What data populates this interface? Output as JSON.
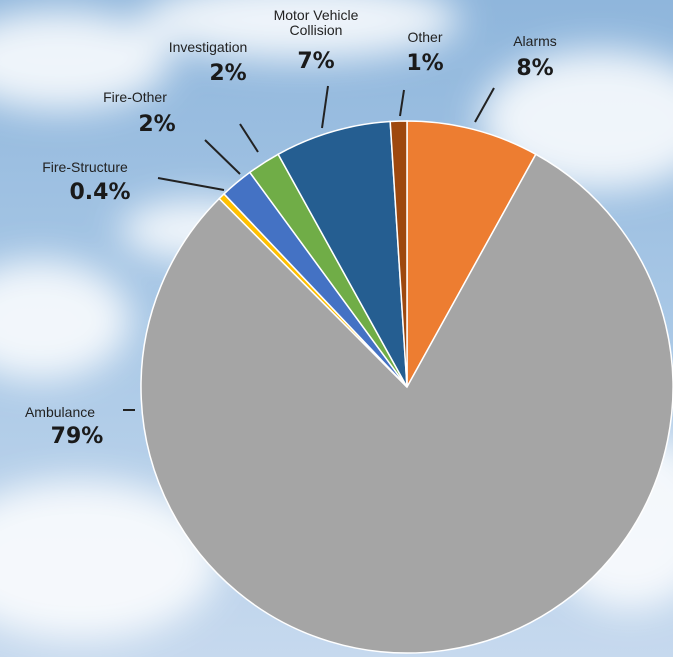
{
  "chart_data": {
    "type": "pie",
    "categories": [
      "Alarms",
      "Ambulance",
      "Fire-Structure",
      "Fire-Other",
      "Investigation",
      "Motor Vehicle Collision",
      "Other"
    ],
    "values": [
      8,
      79,
      0.4,
      2,
      2,
      7,
      1
    ],
    "value_labels": [
      "8%",
      "79%",
      "0.4%",
      "2%",
      "2%",
      "7%",
      "1%"
    ],
    "colors": [
      "#ED7D31",
      "#A5A5A5",
      "#FFC000",
      "#4472C4",
      "#70AD47",
      "#255E91",
      "#9E480E"
    ]
  }
}
